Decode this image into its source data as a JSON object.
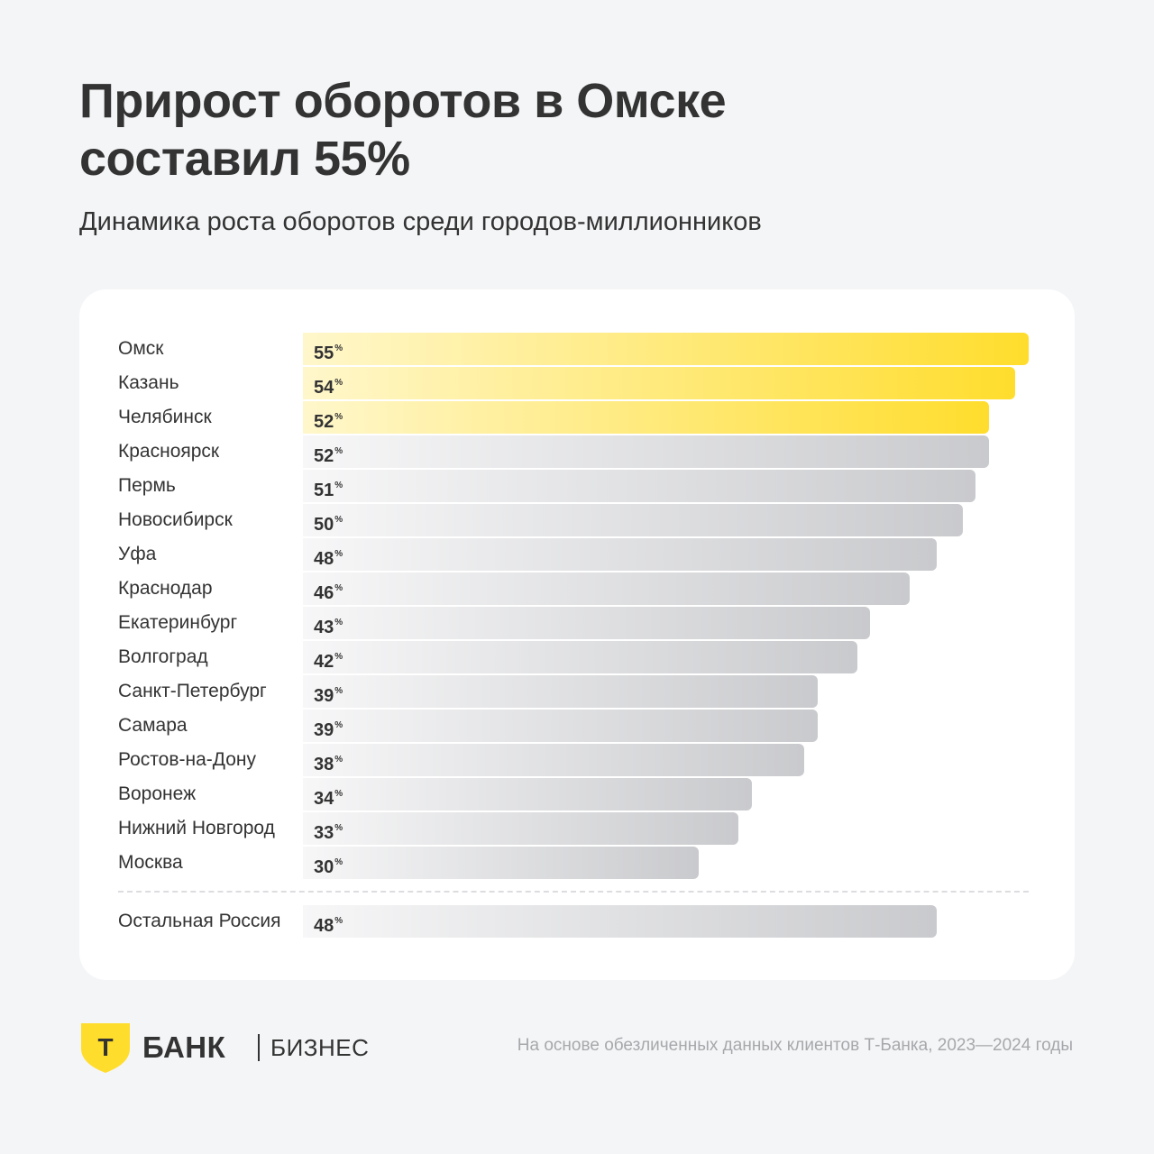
{
  "header": {
    "title_line1": "Прирост оборотов в Омске",
    "title_line2": "составил 55%",
    "subtitle": "Динамика роста оборотов среди городов-миллионников"
  },
  "chart_data": {
    "type": "bar",
    "orientation": "horizontal",
    "unit": "%",
    "xlim": [
      0,
      55
    ],
    "categories": [
      "Омск",
      "Казань",
      "Челябинск",
      "Красноярск",
      "Пермь",
      "Новосибирск",
      "Уфа",
      "Краснодар",
      "Екатеринбург",
      "Волгоград",
      "Санкт-Петербург",
      "Самара",
      "Ростов-на-Дону",
      "Воронеж",
      "Нижний Новгород",
      "Москва"
    ],
    "values": [
      55,
      54,
      52,
      52,
      51,
      50,
      48,
      46,
      43,
      42,
      39,
      39,
      38,
      34,
      33,
      30
    ],
    "highlighted": [
      "Омск",
      "Казань",
      "Челябинск"
    ],
    "reference": {
      "category": "Остальная Россия",
      "value": 48
    },
    "colors": {
      "highlight": "#ffdd2d",
      "default": "#c9cacd"
    },
    "grid": false,
    "legend": "none"
  },
  "footer": {
    "logo_letter": "Т",
    "brand": "БАНК",
    "brand_sub": "БИЗНЕС",
    "source": "На основе обезличенных данных клиентов Т-Банка, 2023—2024 годы"
  },
  "colors": {
    "background": "#f4f5f7",
    "card": "#ffffff",
    "text": "#333333",
    "brand_yellow": "#ffdd2d",
    "muted": "#a7a8ab"
  }
}
